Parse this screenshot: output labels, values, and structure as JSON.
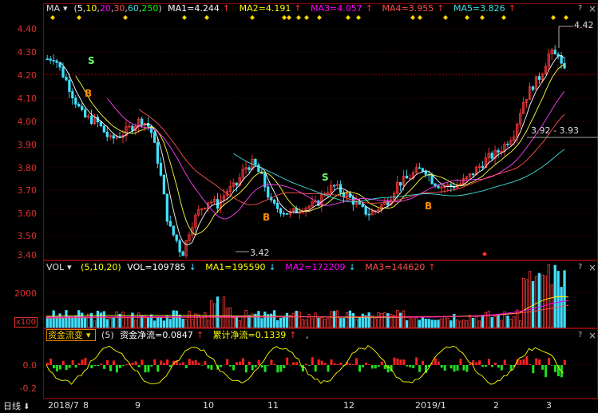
{
  "main_header": {
    "indicator": "MA",
    "params_open": "(",
    "params": [
      "5",
      "10",
      "20",
      "30",
      "60",
      "250"
    ],
    "params_close": ")",
    "ma1": "MA1=4.244",
    "ma2": "MA2=4.191",
    "ma3": "MA3=4.057",
    "ma4": "MA4=3.955",
    "ma5": "MA5=3.826"
  },
  "price_axis": [
    "4.40",
    "4.30",
    "4.20",
    "4.10",
    "4.00",
    "3.90",
    "3.80",
    "3.70",
    "3.60",
    "3.50",
    "3.40"
  ],
  "annotations": {
    "high": "4.42",
    "low": "3.42",
    "range": "3.92 - 3.93"
  },
  "signals": {
    "buy": "B",
    "sell": "S"
  },
  "vol_header": {
    "indicator": "VOL",
    "params": "(5,10,20)",
    "vol": "VOL=109785",
    "ma1": "MA1=195590",
    "ma2": "MA2=172209",
    "ma3": "MA3=144620"
  },
  "vol_axis": {
    "tick": "2000",
    "unit": "x100"
  },
  "flow_header": {
    "indicator": "资金流变",
    "param": "(5)",
    "net": "资金净流=0.0847",
    "cum": "累计净流=0.1339",
    "tail": ","
  },
  "flow_axis": [
    "0.0",
    "-0.2"
  ],
  "x_axis": [
    "2018/7",
    "8",
    "9",
    "10",
    "11",
    "12",
    "2019/1",
    "2",
    "3"
  ],
  "period_button": "日线",
  "icons": {
    "help": "?",
    "close": "×",
    "arrow_up": "↑",
    "arrow_down": "↓",
    "dropdown": "▾"
  },
  "colors": {
    "up": "#ff3b3b",
    "down": "#40e0ff",
    "ma1": "#ffffff",
    "ma2": "#ffff40",
    "ma3": "#ff40ff",
    "ma4": "#ff5050",
    "ma5": "#40e0e0",
    "grid": "#7a0a0a",
    "axis_text": "#e03030"
  }
}
